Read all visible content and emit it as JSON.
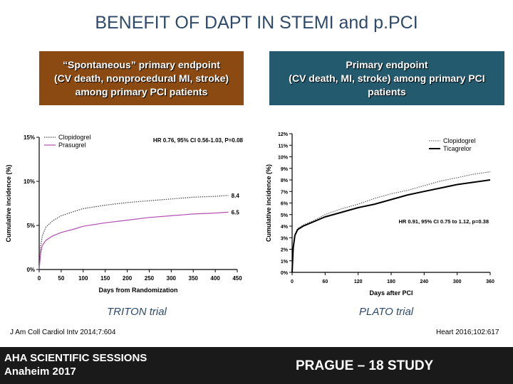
{
  "slide": {
    "title": "BENEFIT OF DAPT IN STEMI and p.PCI",
    "left_header": [
      "“Spontaneous” primary endpoint",
      "(CV death, nonprocedural MI, stroke)",
      "among primary PCI patients"
    ],
    "right_header": [
      "Primary endpoint",
      "(CV death, MI, stroke) among primary PCI",
      "patients"
    ],
    "left_trial": "TRITON trial",
    "right_trial": "PLATO trial",
    "left_citation": "J Am Coll Cardiol Intv 2014;7:604",
    "right_citation": "Heart 2016;102:617",
    "footer_left_line1": "AHA SCIENTIFIC SESSIONS",
    "footer_left_line2": "Anaheim   2017",
    "footer_right": "PRAGUE – 18 STUDY"
  },
  "colors": {
    "left_header_bg": "#8b4a12",
    "right_header_bg": "#245a6e",
    "title_color": "#2e4a6b",
    "prasugrel": "#b24fb0"
  },
  "chart_data": [
    {
      "type": "line",
      "xlabel": "Days from Randomization",
      "ylabel": "Cumulative incidence (%)",
      "xlim": [
        0,
        450
      ],
      "ylim": [
        0,
        15
      ],
      "xticks": [
        "0",
        "50",
        "100",
        "150",
        "200",
        "250",
        "300",
        "350",
        "400",
        "450"
      ],
      "yticks": [
        "0%",
        "5%",
        "10%",
        "15%"
      ],
      "annotation": "HR 0.76, 95% CI 0.56-1.03, P=0.08",
      "series": [
        {
          "name": "Clopidogrel",
          "style": "dotted",
          "x": [
            0,
            3,
            7,
            15,
            30,
            50,
            80,
            100,
            150,
            200,
            250,
            300,
            350,
            400,
            430
          ],
          "y": [
            0,
            2.5,
            3.8,
            4.8,
            5.5,
            6.1,
            6.6,
            6.9,
            7.3,
            7.6,
            7.8,
            8.0,
            8.2,
            8.3,
            8.4
          ],
          "end_label": "8.4"
        },
        {
          "name": "Prasugrel",
          "style": "solid",
          "x": [
            0,
            3,
            7,
            15,
            30,
            50,
            80,
            100,
            150,
            200,
            250,
            300,
            350,
            400,
            430
          ],
          "y": [
            0,
            1.8,
            2.7,
            3.3,
            3.8,
            4.2,
            4.6,
            4.9,
            5.3,
            5.6,
            5.9,
            6.1,
            6.3,
            6.4,
            6.5
          ],
          "end_label": "6.5"
        }
      ]
    },
    {
      "type": "line",
      "xlabel": "Days after PCI",
      "ylabel": "Cumulative incidence (%)",
      "xlim": [
        0,
        360
      ],
      "ylim": [
        0,
        12
      ],
      "xticks": [
        "0",
        "60",
        "120",
        "180",
        "240",
        "300",
        "360"
      ],
      "yticks": [
        "0%",
        "1%",
        "2%",
        "3%",
        "4%",
        "5%",
        "6%",
        "7%",
        "8%",
        "9%",
        "10%",
        "11%",
        "12%"
      ],
      "annotation": "HR 0.91, 95% CI 0.75 to 1.12, p=0.38",
      "series": [
        {
          "name": "Clopidogrel",
          "style": "dotted",
          "x": [
            0,
            2,
            5,
            10,
            20,
            40,
            60,
            90,
            120,
            150,
            180,
            210,
            240,
            270,
            300,
            330,
            360
          ],
          "y": [
            0,
            2.2,
            3.3,
            3.8,
            4.1,
            4.5,
            5.0,
            5.5,
            5.9,
            6.4,
            6.8,
            7.1,
            7.5,
            7.9,
            8.2,
            8.5,
            8.7
          ]
        },
        {
          "name": "Ticagrelor",
          "style": "solid",
          "x": [
            0,
            2,
            5,
            10,
            20,
            40,
            60,
            90,
            120,
            150,
            180,
            210,
            240,
            270,
            300,
            330,
            360
          ],
          "y": [
            0,
            2.1,
            3.2,
            3.7,
            4.0,
            4.4,
            4.8,
            5.2,
            5.6,
            5.9,
            6.3,
            6.7,
            7.0,
            7.3,
            7.6,
            7.8,
            8.0
          ]
        }
      ]
    }
  ]
}
